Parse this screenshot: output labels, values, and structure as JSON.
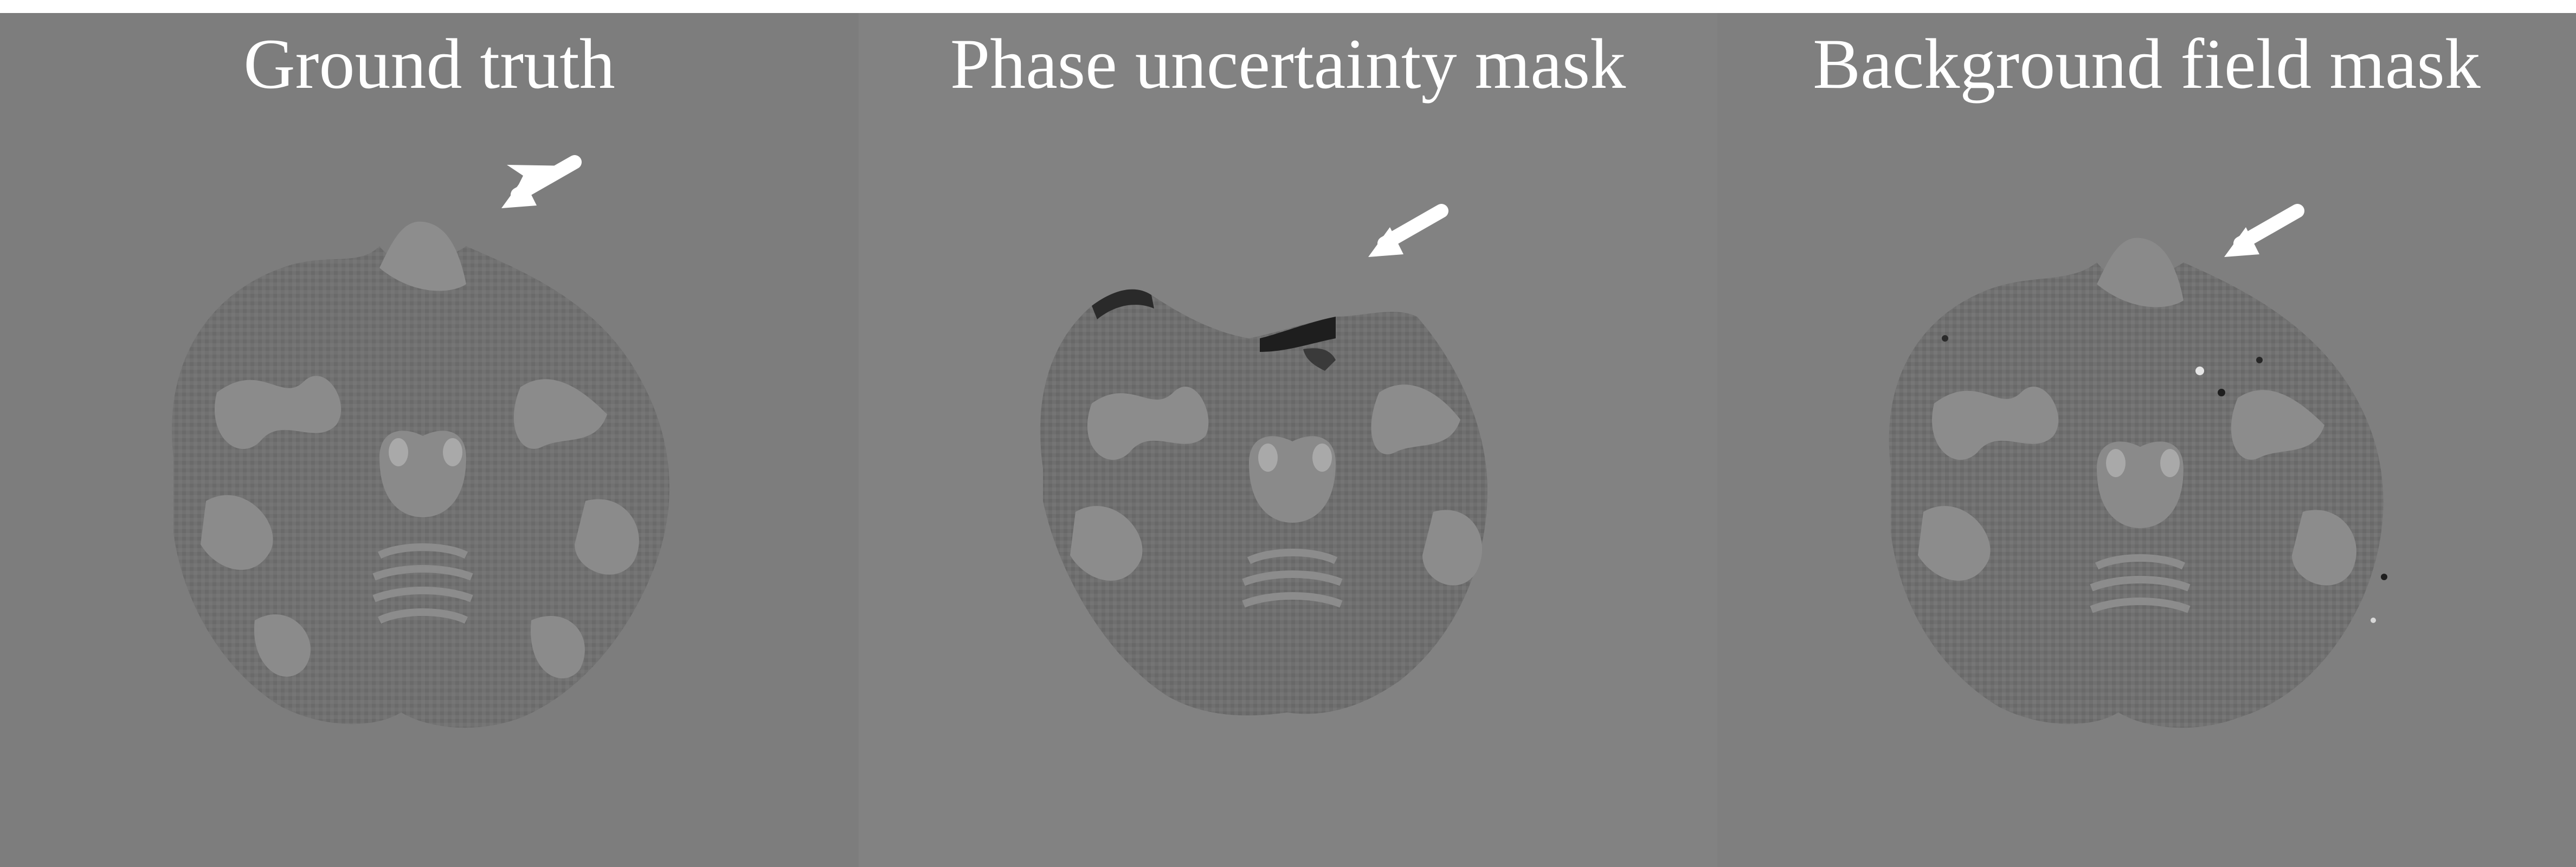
{
  "panels": [
    {
      "title": "Ground truth",
      "image": "axial brain susceptibility map with frontal region intact",
      "arrow_icon": "white-arrow-icon"
    },
    {
      "title": "Phase uncertainty mask",
      "image": "axial brain susceptibility map with frontal region cropped and dark artifacts",
      "arrow_icon": "white-arrow-icon"
    },
    {
      "title": "Background field mask",
      "image": "axial brain susceptibility map with frontal region partially preserved and speckle artifacts",
      "arrow_icon": "white-arrow-icon"
    }
  ],
  "colors": {
    "title_text": "#ffffff",
    "background": "#7d7d7d",
    "grey_matter": "#6e6e6e",
    "white_matter": "#8c8c8c",
    "arrow": "#ffffff"
  }
}
